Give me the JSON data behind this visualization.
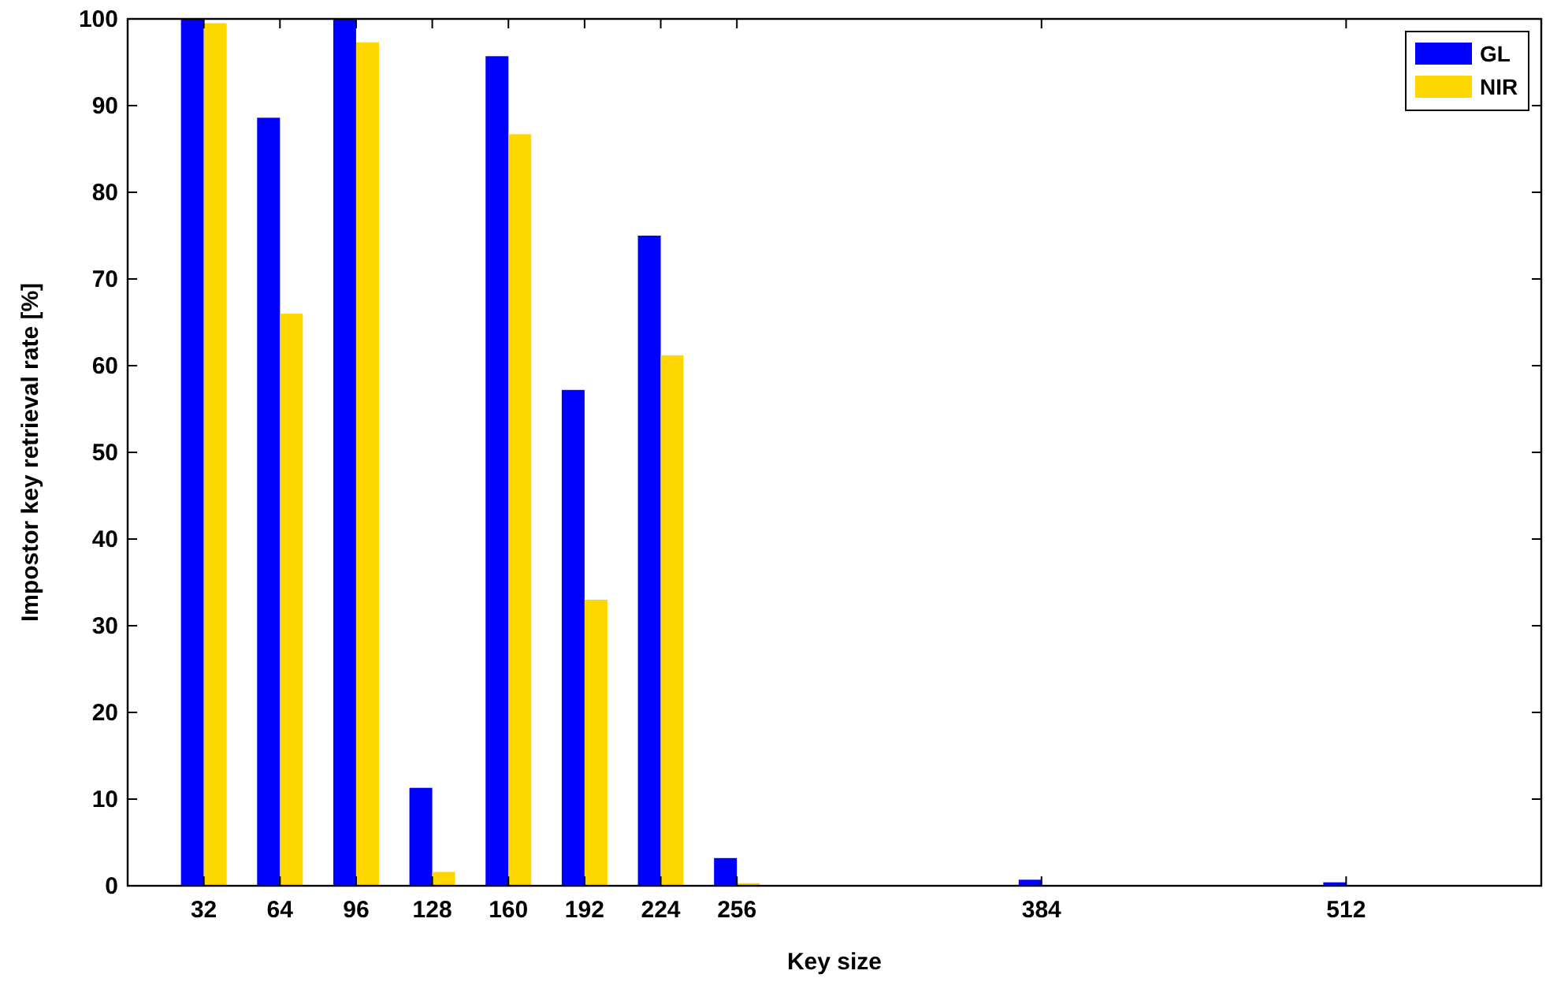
{
  "chart_data": {
    "type": "bar",
    "xlabel": "Key size",
    "ylabel": "Impostor key retrieval rate [%]",
    "x": [
      32,
      64,
      96,
      128,
      160,
      192,
      224,
      256,
      384,
      512
    ],
    "series": [
      {
        "name": "GL",
        "color": "#0000ff",
        "values": [
          100,
          88.6,
          100,
          11.3,
          95.7,
          57.2,
          75,
          3.2,
          0.7,
          0.4
        ]
      },
      {
        "name": "NIR",
        "color": "#ffd700",
        "values": [
          99.5,
          66,
          97.3,
          1.6,
          86.7,
          33,
          61.2,
          0.3,
          null,
          null
        ]
      }
    ],
    "xlim": [
      0,
      594
    ],
    "xticks": [
      32,
      64,
      96,
      128,
      160,
      192,
      224,
      256,
      384,
      512
    ],
    "ylim": [
      0,
      100
    ],
    "yticks": [
      0,
      10,
      20,
      30,
      40,
      50,
      60,
      70,
      80,
      90,
      100
    ],
    "grid": false,
    "legend": "top right"
  }
}
